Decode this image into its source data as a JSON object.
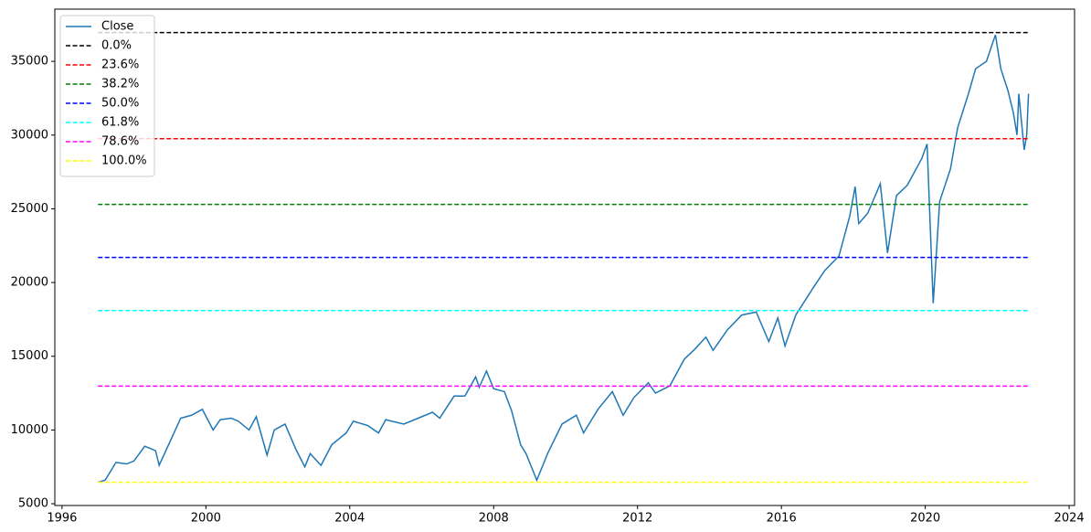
{
  "chart_data": {
    "type": "line",
    "xlim": [
      1995.8,
      2024.15
    ],
    "ylim": [
      4880,
      38540
    ],
    "xticks": [
      1996,
      2000,
      2004,
      2008,
      2012,
      2016,
      2020,
      2024
    ],
    "yticks": [
      5000,
      10000,
      15000,
      20000,
      25000,
      30000,
      35000
    ],
    "legend": "upper left",
    "series": [
      {
        "name": "Close",
        "color": "#1f77b4",
        "style": "solid",
        "x": [
          1997.0,
          1997.2,
          1997.5,
          1997.8,
          1998.0,
          1998.3,
          1998.6,
          1998.7,
          1999.0,
          1999.3,
          1999.6,
          1999.9,
          2000.2,
          2000.4,
          2000.7,
          2000.9,
          2001.2,
          2001.4,
          2001.7,
          2001.9,
          2002.2,
          2002.5,
          2002.75,
          2002.9,
          2003.2,
          2003.5,
          2003.9,
          2004.1,
          2004.5,
          2004.8,
          2005.0,
          2005.5,
          2005.9,
          2006.3,
          2006.5,
          2006.9,
          2007.2,
          2007.5,
          2007.6,
          2007.8,
          2008.0,
          2008.3,
          2008.5,
          2008.75,
          2008.9,
          2009.2,
          2009.5,
          2009.9,
          2010.3,
          2010.5,
          2010.9,
          2011.3,
          2011.6,
          2011.9,
          2012.3,
          2012.5,
          2012.9,
          2013.3,
          2013.6,
          2013.9,
          2014.1,
          2014.5,
          2014.9,
          2015.3,
          2015.65,
          2015.9,
          2016.1,
          2016.4,
          2016.9,
          2017.2,
          2017.6,
          2017.9,
          2018.05,
          2018.15,
          2018.4,
          2018.75,
          2018.95,
          2019.2,
          2019.5,
          2019.9,
          2020.05,
          2020.22,
          2020.4,
          2020.7,
          2020.9,
          2021.2,
          2021.4,
          2021.7,
          2021.95,
          2022.1,
          2022.3,
          2022.45,
          2022.55,
          2022.6,
          2022.75,
          2022.82,
          2022.87
        ],
        "values": [
          6450,
          6600,
          7800,
          7700,
          7900,
          8900,
          8600,
          7600,
          9200,
          10800,
          11000,
          11400,
          10000,
          10700,
          10800,
          10600,
          10000,
          10900,
          8300,
          10000,
          10400,
          8700,
          7500,
          8400,
          7600,
          9000,
          9800,
          10600,
          10300,
          9800,
          10700,
          10400,
          10800,
          11200,
          10800,
          12300,
          12300,
          13600,
          12900,
          14000,
          12800,
          12600,
          11300,
          9000,
          8400,
          6600,
          8400,
          10400,
          11000,
          9800,
          11400,
          12600,
          11000,
          12200,
          13200,
          12500,
          13000,
          14800,
          15500,
          16300,
          15400,
          16800,
          17800,
          18000,
          16000,
          17600,
          15700,
          17800,
          19700,
          20800,
          21800,
          24500,
          26500,
          24000,
          24700,
          26700,
          22000,
          25900,
          26600,
          28400,
          29400,
          18600,
          25500,
          27700,
          30500,
          32800,
          34500,
          35000,
          36800,
          34500,
          33000,
          31500,
          30000,
          32800,
          29000,
          30000,
          32800
        ]
      },
      {
        "name": "0.0%",
        "color": "#000000",
        "style": "dashed",
        "x": [
          1997.0,
          2022.87
        ],
        "values": [
          36950,
          36950
        ]
      },
      {
        "name": "23.6%",
        "color": "#ff0000",
        "style": "dashed",
        "x": [
          1997.0,
          2022.87
        ],
        "values": [
          29750,
          29750
        ]
      },
      {
        "name": "38.2%",
        "color": "#008000",
        "style": "dashed",
        "x": [
          1997.0,
          2022.87
        ],
        "values": [
          25300,
          25300
        ]
      },
      {
        "name": "50.0%",
        "color": "#0000ff",
        "style": "dashed",
        "x": [
          1997.0,
          2022.87
        ],
        "values": [
          21700,
          21700
        ]
      },
      {
        "name": "61.8%",
        "color": "#00ffff",
        "style": "dashed",
        "x": [
          1997.0,
          2022.87
        ],
        "values": [
          18100,
          18100
        ]
      },
      {
        "name": "78.6%",
        "color": "#ff00ff",
        "style": "dashed",
        "x": [
          1997.0,
          2022.87
        ],
        "values": [
          12980,
          12980
        ]
      },
      {
        "name": "100.0%",
        "color": "#ffff00",
        "style": "dashed",
        "x": [
          1997.0,
          2022.87
        ],
        "values": [
          6450,
          6450
        ]
      }
    ]
  }
}
